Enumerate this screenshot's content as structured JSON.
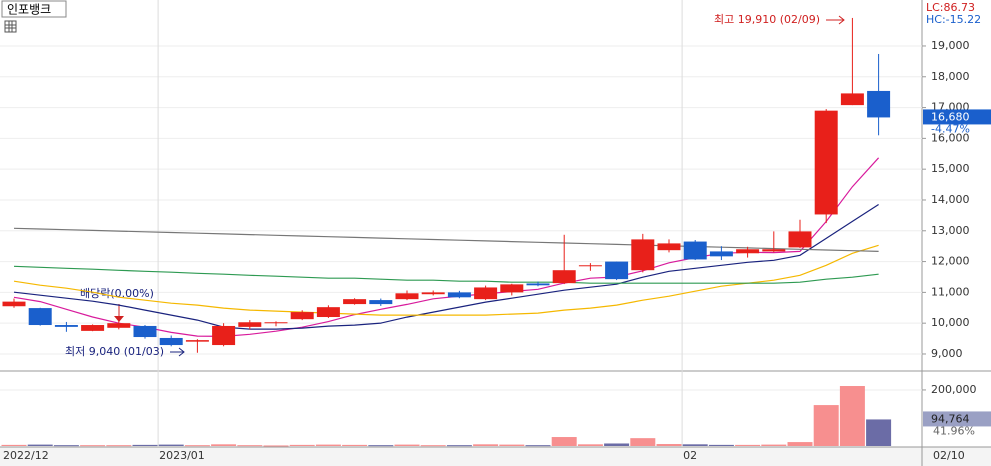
{
  "chart_data": {
    "type": "candlestick",
    "title": "인포뱅크",
    "indicators": [
      "LC:86.73",
      "HC:-15.22"
    ],
    "categories": [
      "2022/12",
      null,
      null,
      null,
      null,
      null,
      "2023/01",
      null,
      null,
      null,
      null,
      null,
      null,
      null,
      null,
      null,
      null,
      null,
      null,
      null,
      null,
      null,
      null,
      null,
      null,
      null,
      "02",
      null,
      null,
      null,
      null,
      null,
      null,
      "02/10"
    ],
    "open": [
      10550,
      10490,
      9940,
      9750,
      9850,
      9910,
      9520,
      9400,
      9290,
      9880,
      10000,
      10130,
      10200,
      10620,
      10750,
      10780,
      10940,
      11000,
      10780,
      11000,
      11290,
      11300,
      11850,
      12000,
      11720,
      12370,
      12650,
      12330,
      12270,
      12330,
      12460,
      13530,
      17080,
      17540
    ],
    "high": [
      10800,
      10500,
      10040,
      9960,
      10100,
      9940,
      9600,
      9480,
      10000,
      10100,
      10060,
      10420,
      10580,
      10810,
      10800,
      11060,
      11060,
      11050,
      11220,
      11280,
      11350,
      12870,
      11950,
      12000,
      12900,
      12720,
      12700,
      12500,
      12480,
      12980,
      13360,
      16950,
      19910,
      18740
    ],
    "low": [
      10500,
      9920,
      9720,
      9740,
      9800,
      9500,
      9250,
      9040,
      9250,
      9800,
      9900,
      10100,
      10170,
      10600,
      10560,
      10750,
      10900,
      10810,
      10750,
      10900,
      11200,
      11270,
      11700,
      11400,
      11650,
      12300,
      12050,
      12050,
      12130,
      12300,
      12440,
      13250,
      17080,
      16100
    ],
    "close": [
      10700,
      9940,
      9880,
      9940,
      10000,
      9550,
      9290,
      9450,
      9910,
      10030,
      10030,
      10360,
      10520,
      10780,
      10620,
      10970,
      11000,
      10840,
      11160,
      11260,
      11230,
      11720,
      11880,
      11430,
      12720,
      12590,
      12070,
      12170,
      12400,
      12400,
      12980,
      16900,
      17460,
      16680
    ],
    "close_labels": [
      null,
      null,
      null,
      null,
      null,
      null,
      null,
      null,
      null,
      null,
      null,
      null,
      null,
      null,
      null,
      null,
      null,
      null,
      null,
      null,
      null,
      null,
      null,
      null,
      null,
      null,
      null,
      null,
      null,
      null,
      null,
      null,
      null,
      "16,680"
    ],
    "change": {
      "value": -4.47,
      "label": "-4.47%"
    },
    "up_color": "#e8201a",
    "down_color": "#1a5fcc",
    "ylim": [
      8480,
      20460
    ],
    "yticks": [
      {
        "value": 9000,
        "label": "9,000"
      },
      {
        "value": 10000,
        "label": "10,000"
      },
      {
        "value": 11000,
        "label": "11,000"
      },
      {
        "value": 12000,
        "label": "12,000"
      },
      {
        "value": 13000,
        "label": "13,000"
      },
      {
        "value": 14000,
        "label": "14,000"
      },
      {
        "value": 15000,
        "label": "15,000"
      },
      {
        "value": 16000,
        "label": "16,000"
      },
      {
        "value": 17000,
        "label": "17,000"
      },
      {
        "value": 18000,
        "label": "18,000"
      },
      {
        "value": 19000,
        "label": "19,000"
      }
    ],
    "grid": true,
    "series": [
      {
        "color": "#d81b9c",
        "values": [
          10840,
          10700,
          10450,
          10200,
          10000,
          9870,
          9700,
          9580,
          9570,
          9640,
          9740,
          9870,
          10050,
          10280,
          10450,
          10610,
          10790,
          10880,
          10950,
          11030,
          11100,
          11300,
          11460,
          11500,
          11700,
          11960,
          12130,
          12270,
          12300,
          12290,
          12330,
          13300,
          14430,
          15370
        ]
      },
      {
        "color": "#1a237e",
        "values": [
          11006,
          10909,
          10812,
          10715,
          10586,
          10424,
          10262,
          10100,
          9874,
          9809,
          9809,
          9841,
          9906,
          9938,
          10003,
          10197,
          10359,
          10521,
          10683,
          10812,
          10942,
          11071,
          11168,
          11265,
          11492,
          11686,
          11783,
          11880,
          11977,
          12042,
          12204,
          12754,
          13304,
          13854
        ]
      },
      {
        "color": "#f5b800",
        "values": [
          11362,
          11233,
          11136,
          11006,
          10845,
          10747,
          10650,
          10586,
          10489,
          10424,
          10391,
          10359,
          10327,
          10294,
          10262,
          10262,
          10262,
          10262,
          10262,
          10294,
          10327,
          10424,
          10489,
          10586,
          10747,
          10877,
          11039,
          11200,
          11298,
          11395,
          11556,
          11880,
          12268,
          12527
        ]
      },
      {
        "color": "#2e9a52",
        "values": [
          11848,
          11815,
          11783,
          11751,
          11718,
          11686,
          11654,
          11621,
          11589,
          11556,
          11524,
          11492,
          11459,
          11459,
          11427,
          11395,
          11395,
          11362,
          11362,
          11330,
          11330,
          11330,
          11298,
          11298,
          11298,
          11298,
          11298,
          11298,
          11298,
          11298,
          11330,
          11427,
          11492,
          11589
        ]
      },
      {
        "color": "#777777",
        "values": [
          13080,
          13057,
          13035,
          13012,
          12989,
          12966,
          12944,
          12921,
          12898,
          12875,
          12853,
          12830,
          12807,
          12784,
          12762,
          12739,
          12716,
          12693,
          12671,
          12648,
          12625,
          12602,
          12580,
          12557,
          12534,
          12511,
          12489,
          12466,
          12443,
          12420,
          12398,
          12375,
          12352,
          12330
        ]
      }
    ],
    "annotations": [
      "최고 19,910 (02/09)",
      "배당락(0.00%)",
      "최저 9,040 (01/03)"
    ],
    "volume": {
      "values": [
        4000,
        5000,
        3000,
        3000,
        3000,
        4000,
        5000,
        3000,
        6000,
        3000,
        2000,
        4000,
        5000,
        4000,
        3000,
        5000,
        3000,
        3000,
        6000,
        5000,
        3000,
        32000,
        6000,
        9000,
        28000,
        7000,
        6000,
        4000,
        4000,
        5000,
        14000,
        146000,
        214000,
        94764
      ],
      "value_labels": [
        null,
        null,
        null,
        null,
        null,
        null,
        null,
        null,
        null,
        null,
        null,
        null,
        null,
        null,
        null,
        null,
        null,
        null,
        null,
        null,
        null,
        null,
        null,
        null,
        null,
        null,
        null,
        null,
        null,
        null,
        null,
        null,
        null,
        "94,764"
      ],
      "change": {
        "value": 41.96,
        "label": "41.96%"
      },
      "up_color": "#f78f8f",
      "down_color": "#6b6ca6",
      "ylim": [
        0,
        264000
      ],
      "yticks": [
        {
          "value": 200000,
          "label": "200,000"
        }
      ]
    }
  }
}
